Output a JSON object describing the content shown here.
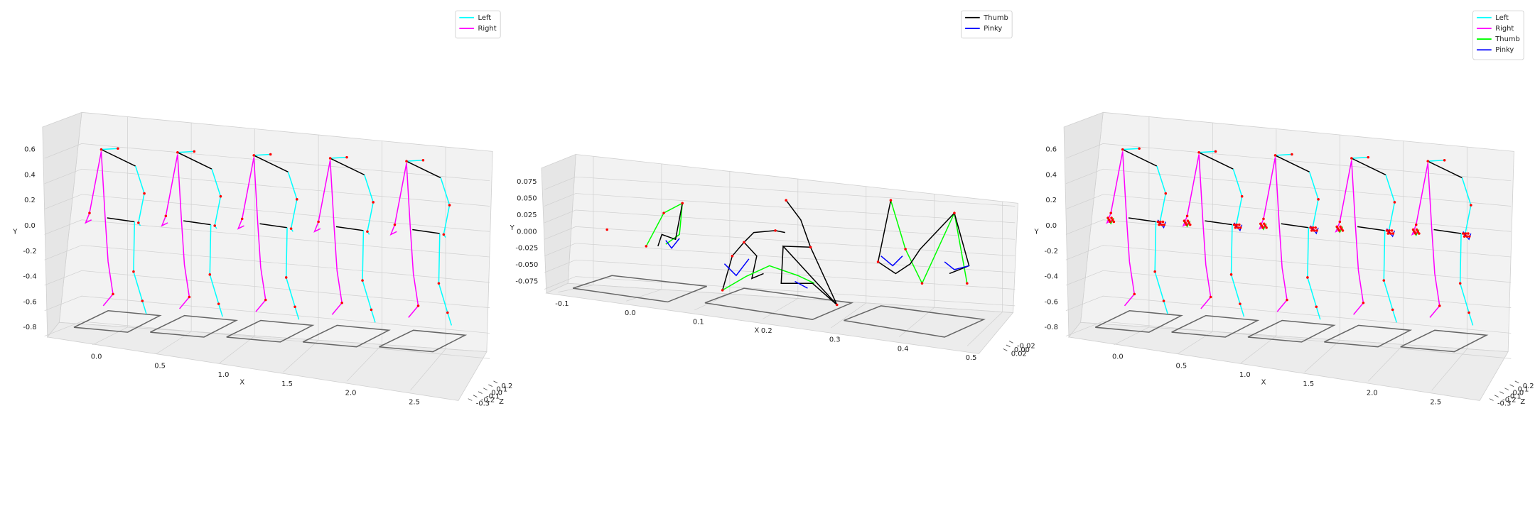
{
  "chart_data": [
    {
      "type": "skeleton3d",
      "xlabel": "X",
      "ylabel": "Y",
      "zlabel": "Z",
      "series": [
        {
          "name": "Left",
          "color": "#00ffff"
        },
        {
          "name": "Right",
          "color": "#ff00ff"
        }
      ],
      "xticks": [
        {
          "value": 0,
          "label": "0.0"
        },
        0.5,
        {
          "value": 1,
          "label": "1.0"
        },
        1.5,
        {
          "value": 2,
          "label": "2.0"
        },
        2.5
      ],
      "yticks": [
        0.6,
        0.4,
        0.2,
        {
          "value": 0,
          "label": "0.0"
        },
        -0.2,
        -0.4,
        -0.6,
        -0.8
      ],
      "zticks": [
        -0.3,
        -0.2,
        -0.1,
        {
          "value": 0,
          "label": "0.0"
        },
        0.1,
        0.2
      ]
    },
    {
      "type": "hand3d",
      "xlabel": "X",
      "ylabel": "Y",
      "series": [
        {
          "name": "Thumb",
          "color": "#000000"
        },
        {
          "name": "Pinky",
          "color": "#0000ff"
        }
      ],
      "xticks": [
        -0.1,
        {
          "value": 0,
          "label": "0.0"
        },
        0.1,
        0.2,
        0.3,
        0.4,
        0.5
      ],
      "yticks": [
        0.075,
        {
          "value": 0.05,
          "label": "0.050"
        },
        0.025,
        {
          "value": 0,
          "label": "0.000"
        },
        -0.025,
        {
          "value": -0.05,
          "label": "-0.050"
        },
        -0.075
      ],
      "zticks": [
        -0.02,
        {
          "value": 0,
          "label": "0.00"
        },
        0.02
      ]
    },
    {
      "type": "skeleton3d",
      "xlabel": "X",
      "ylabel": "Y",
      "zlabel": "Z",
      "series": [
        {
          "name": "Left",
          "color": "#00ffff"
        },
        {
          "name": "Right",
          "color": "#ff00ff"
        },
        {
          "name": "Thumb",
          "color": "#00ff00"
        },
        {
          "name": "Pinky",
          "color": "#0000ff"
        }
      ],
      "xticks": [
        {
          "value": 0,
          "label": "0.0"
        },
        0.5,
        {
          "value": 1,
          "label": "1.0"
        },
        1.5,
        {
          "value": 2,
          "label": "2.0"
        },
        2.5
      ],
      "yticks": [
        0.6,
        0.4,
        0.2,
        {
          "value": 0,
          "label": "0.0"
        },
        -0.2,
        -0.4,
        -0.6,
        -0.8
      ],
      "zticks": [
        -0.3,
        -0.2,
        -0.1,
        {
          "value": 0,
          "label": "0.0"
        },
        0.1,
        0.2
      ]
    }
  ]
}
